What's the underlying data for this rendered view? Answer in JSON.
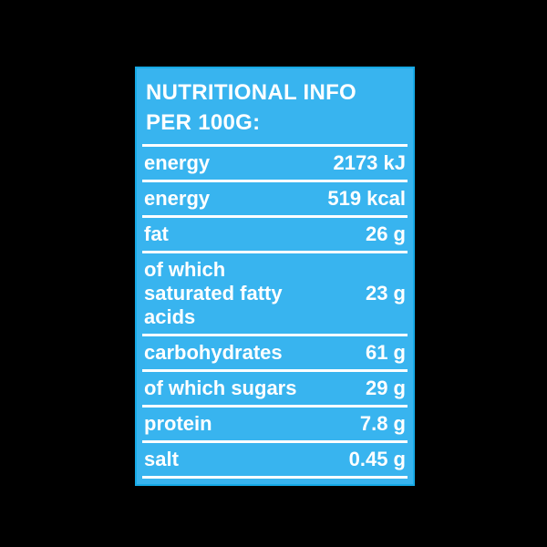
{
  "card": {
    "title_line1": "NUTRITIONAL INFO",
    "title_line2": "PER 100G:",
    "rows": [
      {
        "label": "energy",
        "value": "2173 kJ"
      },
      {
        "label": "energy",
        "value": "519 kcal"
      },
      {
        "label": "fat",
        "value": "26 g"
      },
      {
        "label": "of which saturated fatty acids",
        "value": "23 g"
      },
      {
        "label": "carbohydrates",
        "value": "61 g"
      },
      {
        "label": "of which sugars",
        "value": "29 g"
      },
      {
        "label": "protein",
        "value": "7.8 g"
      },
      {
        "label": "salt",
        "value": "0.45 g"
      }
    ],
    "colors": {
      "page_background": "#000000",
      "card_background": "#38B4EF",
      "card_border": "#16AAE6",
      "text": "#FFFFFF",
      "divider": "#FFFFFF"
    }
  }
}
